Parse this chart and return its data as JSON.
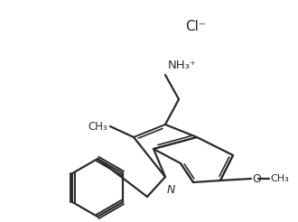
{
  "background_color": "#ffffff",
  "line_color": "#2a2a2a",
  "line_width": 1.6,
  "figsize": [
    3.3,
    2.46
  ],
  "dpi": 100,
  "cl_text": "Cl⁻",
  "nh3_text": "NH₃⁺",
  "n_text": "N",
  "o_text": "O",
  "ch3_text": "CH₃"
}
